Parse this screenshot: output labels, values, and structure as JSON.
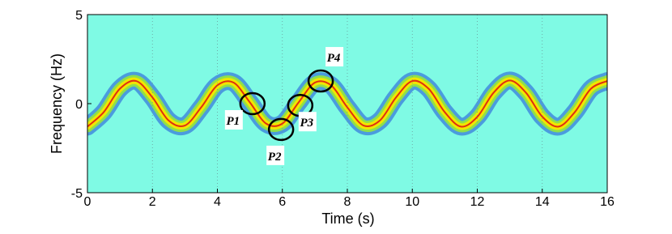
{
  "chart_data": {
    "type": "line",
    "x_label": "Time (s)",
    "y_label": "Frequency (Hz)",
    "xlim": [
      0,
      16
    ],
    "ylim": [
      -5,
      5
    ],
    "xticks": [
      0,
      2,
      4,
      6,
      8,
      10,
      12,
      14,
      16
    ],
    "yticks": [
      -5,
      0,
      5
    ],
    "grid": true,
    "background": "#7ffae4",
    "x": [
      0,
      0.5,
      1,
      1.5,
      2,
      2.5,
      3,
      3.5,
      4,
      4.5,
      5,
      5.5,
      6,
      6.5,
      7,
      7.5,
      8,
      8.5,
      9,
      9.5,
      10,
      10.5,
      11,
      11.5,
      12,
      12.5,
      13,
      13.5,
      14,
      14.5,
      15,
      15.5,
      16
    ],
    "series": [
      {
        "color": "#f2e600",
        "values": [
          -1.29,
          -0.48,
          0.84,
          1.27,
          0.35,
          -0.95,
          -1.23,
          -0.21,
          1.03,
          1.18,
          0.07,
          -1.12,
          -1.12,
          0.07,
          1.18,
          1.03,
          -0.21,
          -1.23,
          -0.95,
          0.35,
          1.27,
          0.84,
          -0.48,
          -1.29,
          -0.74,
          0.61,
          1.3,
          0.61,
          -0.73,
          -1.29,
          -0.48,
          0.84,
          1.27
        ]
      }
    ],
    "annotations": [
      {
        "label": "P1",
        "x": 5.08,
        "y": 0
      },
      {
        "label": "P2",
        "x": 5.96,
        "y": -1.45
      },
      {
        "label": "P3",
        "x": 6.55,
        "y": -0.1
      },
      {
        "label": "P4",
        "x": 7.18,
        "y": 1.27
      }
    ]
  }
}
